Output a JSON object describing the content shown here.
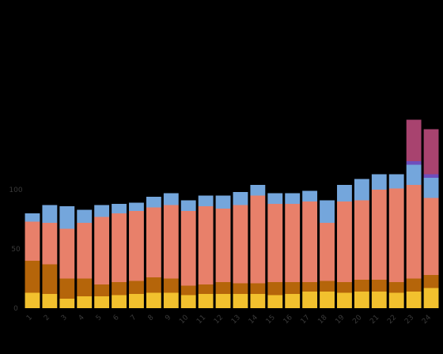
{
  "chart_data": {
    "type": "bar",
    "stacked": true,
    "title": "",
    "xlabel": "",
    "ylabel": "",
    "ylim": [
      0,
      220
    ],
    "y_ticks": [
      0,
      50,
      100
    ],
    "y_tick_labels": [
      "0",
      "50",
      "100"
    ],
    "grid": false,
    "legend": "none",
    "categories": [
      "1",
      "2",
      "3",
      "4",
      "5",
      "6",
      "7",
      "8",
      "9",
      "10",
      "11",
      "12",
      "13",
      "14",
      "15",
      "16",
      "17",
      "18",
      "19",
      "20",
      "21",
      "22",
      "23",
      "24"
    ],
    "series": [
      {
        "color": "#f2c12e",
        "values": [
          13,
          12,
          8,
          10,
          10,
          11,
          12,
          13,
          13,
          11,
          12,
          12,
          12,
          12,
          11,
          12,
          14,
          14,
          13,
          14,
          14,
          13,
          14,
          17
        ]
      },
      {
        "color": "#b5650a",
        "values": [
          27,
          25,
          17,
          15,
          10,
          11,
          11,
          13,
          12,
          8,
          8,
          10,
          9,
          9,
          11,
          10,
          8,
          9,
          9,
          10,
          10,
          9,
          11,
          11
        ]
      },
      {
        "color": "#e8806a",
        "values": [
          33,
          35,
          42,
          47,
          57,
          58,
          59,
          59,
          62,
          63,
          66,
          62,
          66,
          74,
          66,
          66,
          68,
          49,
          68,
          67,
          76,
          79,
          79,
          65
        ]
      },
      {
        "color": "#74a6dc",
        "values": [
          7,
          15,
          19,
          11,
          10,
          8,
          7,
          9,
          10,
          9,
          9,
          11,
          11,
          9,
          9,
          9,
          9,
          19,
          14,
          18,
          13,
          12,
          17,
          17
        ]
      },
      {
        "color": "#6e4ebd",
        "values": [
          0,
          0,
          0,
          0,
          0,
          0,
          0,
          0,
          0,
          0,
          0,
          0,
          0,
          0,
          0,
          0,
          0,
          0,
          0,
          0,
          0,
          0,
          3,
          3
        ]
      },
      {
        "color": "#a8436f",
        "values": [
          0,
          0,
          0,
          0,
          0,
          0,
          0,
          0,
          0,
          0,
          0,
          0,
          0,
          0,
          0,
          0,
          0,
          0,
          0,
          0,
          0,
          0,
          35,
          38
        ]
      }
    ]
  }
}
